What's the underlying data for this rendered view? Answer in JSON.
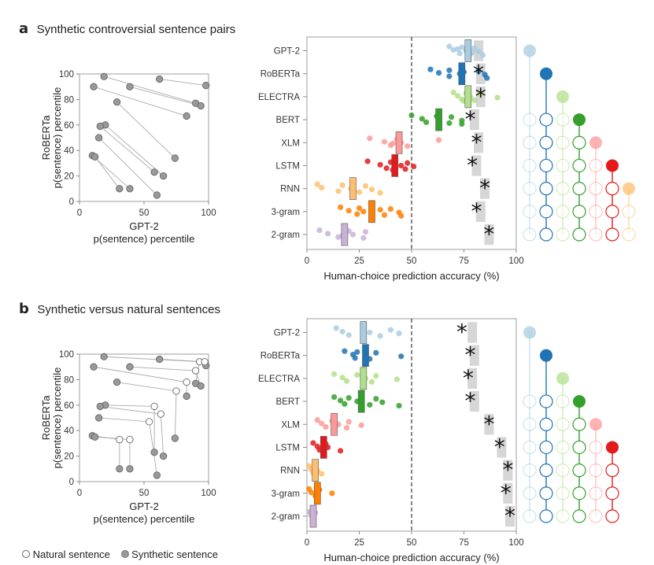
{
  "panels": [
    {
      "letter": "a",
      "title": "Synthetic controversial sentence pairs",
      "scatter": {
        "xlabel_line1": "GPT-2",
        "xlabel_line2": "p(sentence) percentile",
        "ylabel_line1": "RoBERTa",
        "ylabel_line2": "p(sentence) percentile"
      },
      "strip": {
        "xlabel": "Human-choice prediction accuracy (%)"
      }
    },
    {
      "letter": "b",
      "title": "Synthetic versus natural sentences",
      "scatter": {
        "xlabel_line1": "GPT-2",
        "xlabel_line2": "p(sentence) percentile",
        "ylabel_line1": "RoBERTa",
        "ylabel_line2": "p(sentence) percentile"
      },
      "strip": {
        "xlabel": "Human-choice prediction accuracy (%)"
      }
    }
  ],
  "legend": {
    "natural": "Natural sentence",
    "synthetic": "Synthetic sentence"
  },
  "colors": {
    "GPT-2": "#a9cce0",
    "RoBERTa": "#2073b4",
    "ELECTRA": "#b2df8a",
    "BERT": "#33a02c",
    "XLM": "#fb9a99",
    "LSTM": "#e31a1c",
    "RNN": "#fdbf6f",
    "3-gram": "#ff7f00",
    "2-gram": "#cab2d6",
    "noise_ceiling": "#c8c8c8"
  },
  "chart_data": [
    {
      "type": "scatter",
      "panel": "a",
      "title": "Synthetic controversial sentence pairs",
      "xlabel": "GPT-2 p(sentence) percentile",
      "ylabel": "RoBERTa p(sentence) percentile",
      "xlim": [
        0,
        100
      ],
      "ylim": [
        0,
        100
      ],
      "xticks": [
        0,
        50,
        100
      ],
      "yticks": [
        0,
        20,
        40,
        60,
        80,
        100
      ],
      "pairs": [
        {
          "a": [
            19,
            98
          ],
          "b": [
            90,
            77
          ]
        },
        {
          "a": [
            62,
            96
          ],
          "b": [
            98,
            91
          ]
        },
        {
          "a": [
            39,
            90
          ],
          "b": [
            94,
            75
          ]
        },
        {
          "a": [
            11,
            90
          ],
          "b": [
            83,
            67
          ]
        },
        {
          "a": [
            29,
            78
          ],
          "b": [
            74,
            34
          ]
        },
        {
          "a": [
            20,
            60
          ],
          "b": [
            65,
            20
          ]
        },
        {
          "a": [
            16,
            59
          ],
          "b": [
            58,
            23
          ]
        },
        {
          "a": [
            15,
            50
          ],
          "b": [
            60,
            5
          ]
        },
        {
          "a": [
            10,
            36
          ],
          "b": [
            39,
            10
          ]
        },
        {
          "a": [
            12,
            35
          ],
          "b": [
            31,
            10
          ]
        }
      ]
    },
    {
      "type": "strip",
      "panel": "a",
      "xlabel": "Human-choice prediction accuracy (%)",
      "xlim": [
        0,
        100
      ],
      "xticks": [
        0,
        25,
        50,
        75,
        100
      ],
      "chance_line": 50,
      "categories": [
        "GPT-2",
        "RoBERTa",
        "ELECTRA",
        "BERT",
        "XLM",
        "LSTM",
        "RNN",
        "3-gram",
        "2-gram"
      ],
      "means": [
        77,
        74,
        77,
        63,
        44,
        42,
        22,
        31,
        18
      ],
      "noise_ceiling": [
        82,
        83,
        83,
        80,
        82,
        81,
        85,
        83,
        87
      ],
      "stars": [
        null,
        82,
        83,
        78,
        81,
        79,
        85,
        81,
        87
      ],
      "points": [
        [
          68,
          70,
          73,
          74,
          76,
          78,
          80,
          82,
          84,
          72,
          79
        ],
        [
          59,
          63,
          68,
          68,
          73,
          74,
          82,
          85,
          86,
          75
        ],
        [
          70,
          72,
          74,
          76,
          78,
          80,
          83,
          91,
          75
        ],
        [
          50,
          55,
          57,
          62,
          63,
          68,
          69,
          74,
          74
        ],
        [
          30,
          37,
          40,
          43,
          45,
          48,
          63,
          41
        ],
        [
          29,
          35,
          38,
          40,
          45,
          47,
          48,
          51,
          41
        ],
        [
          5,
          7,
          15,
          17,
          21,
          25,
          28,
          31,
          35
        ],
        [
          16,
          20,
          24,
          25,
          27,
          37,
          40,
          44,
          45,
          35
        ],
        [
          6,
          10,
          15,
          20,
          22,
          27,
          28,
          17
        ]
      ]
    },
    {
      "type": "scatter",
      "panel": "b",
      "title": "Synthetic versus natural sentences",
      "xlabel": "GPT-2 p(sentence) percentile",
      "ylabel": "RoBERTa p(sentence) percentile",
      "xlim": [
        0,
        100
      ],
      "ylim": [
        0,
        100
      ],
      "xticks": [
        0,
        50,
        100
      ],
      "yticks": [
        0,
        20,
        40,
        60,
        80,
        100
      ],
      "triplets": [
        {
          "s1": [
            19,
            98
          ],
          "n": [
            93,
            94
          ],
          "s2": [
            90,
            77
          ]
        },
        {
          "s1": [
            62,
            96
          ],
          "n": [
            97,
            94
          ],
          "s2": [
            98,
            91
          ]
        },
        {
          "s1": [
            39,
            90
          ],
          "n": [
            90,
            87
          ],
          "s2": [
            94,
            75
          ]
        },
        {
          "s1": [
            11,
            90
          ],
          "n": [
            83,
            78
          ],
          "s2": [
            83,
            67
          ]
        },
        {
          "s1": [
            29,
            78
          ],
          "n": [
            75,
            71
          ],
          "s2": [
            74,
            34
          ]
        },
        {
          "s1": [
            20,
            60
          ],
          "n": [
            58,
            59
          ],
          "s2": [
            58,
            23
          ]
        },
        {
          "s1": [
            16,
            59
          ],
          "n": [
            63,
            53
          ],
          "s2": [
            65,
            20
          ]
        },
        {
          "s1": [
            15,
            50
          ],
          "n": [
            54,
            47
          ],
          "s2": [
            60,
            5
          ]
        },
        {
          "s1": [
            10,
            36
          ],
          "n": [
            31,
            33
          ],
          "s2": [
            31,
            10
          ]
        },
        {
          "s1": [
            12,
            35
          ],
          "n": [
            39,
            33
          ],
          "s2": [
            39,
            10
          ]
        }
      ]
    },
    {
      "type": "strip",
      "panel": "b",
      "xlabel": "Human-choice prediction accuracy (%)",
      "xlim": [
        0,
        100
      ],
      "xticks": [
        0,
        25,
        50,
        75,
        100
      ],
      "chance_line": 50,
      "categories": [
        "GPT-2",
        "RoBERTa",
        "ELECTRA",
        "BERT",
        "XLM",
        "LSTM",
        "RNN",
        "3-gram",
        "2-gram"
      ],
      "means": [
        27,
        28,
        27,
        26,
        13,
        8,
        4,
        5,
        3
      ],
      "noise_ceiling": [
        79,
        80,
        79,
        80,
        87,
        93,
        96,
        96,
        97
      ],
      "stars": [
        74,
        78,
        77,
        78,
        87,
        92,
        96,
        95,
        97
      ],
      "points": [
        [
          14,
          17,
          20,
          27,
          30,
          35,
          40,
          44
        ],
        [
          18,
          22,
          23,
          24,
          28,
          30,
          33,
          45
        ],
        [
          13,
          17,
          19,
          24,
          28,
          31,
          33,
          43
        ],
        [
          13,
          16,
          18,
          20,
          24,
          30,
          33,
          36,
          44
        ],
        [
          5,
          7,
          9,
          12,
          15,
          19,
          20,
          26
        ],
        [
          3,
          5,
          6,
          9,
          10,
          16
        ],
        [
          1,
          2,
          3,
          4,
          5,
          7
        ],
        [
          1,
          2,
          4,
          6,
          12
        ],
        [
          1,
          2,
          3,
          4
        ]
      ]
    }
  ],
  "tree": {
    "panel_a_columns": [
      "GPT-2",
      "RoBERTa",
      "ELECTRA",
      "BERT",
      "XLM",
      "LSTM",
      "RNN"
    ],
    "panel_b_columns": [
      "GPT-2",
      "RoBERTa",
      "ELECTRA",
      "BERT",
      "XLM",
      "LSTM"
    ]
  }
}
